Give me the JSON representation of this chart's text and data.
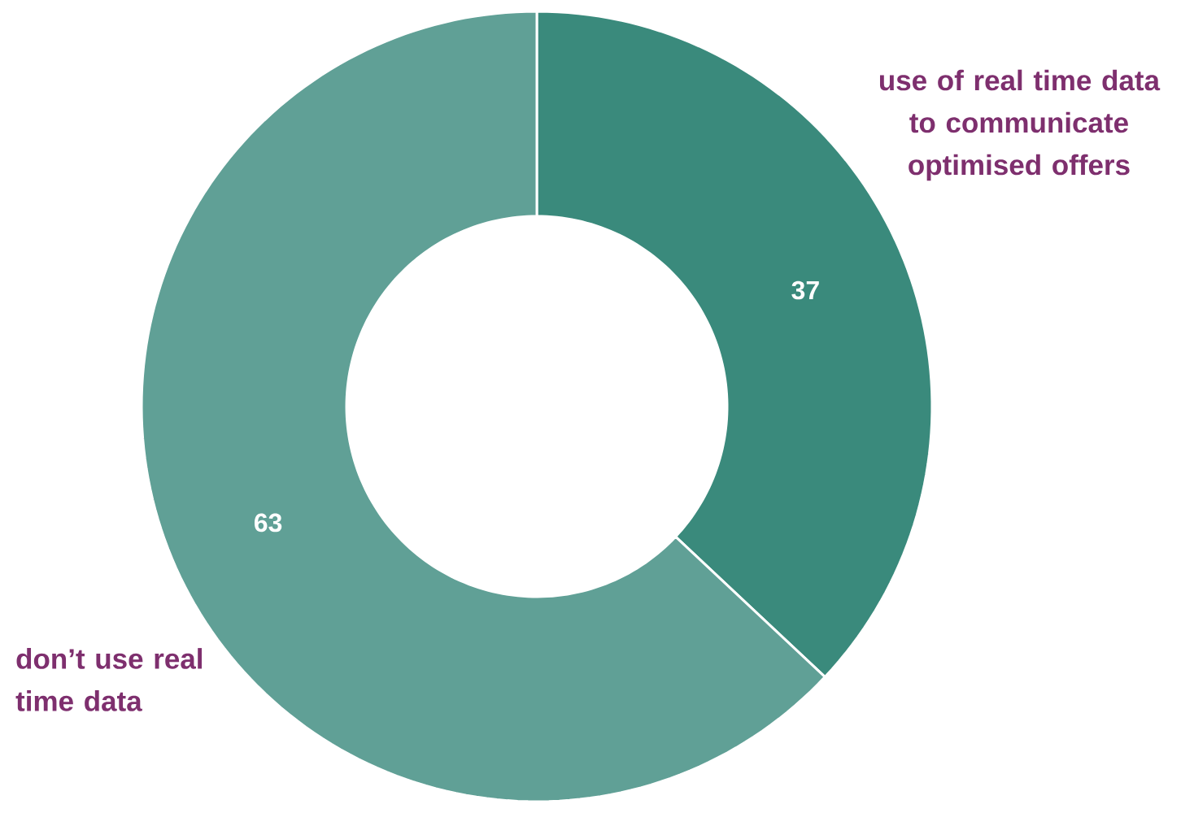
{
  "chart_data": {
    "type": "donut",
    "categories": [
      "use of real time data to communicate optimised offers",
      "don’t use real time data"
    ],
    "values": [
      37,
      63
    ],
    "colors": [
      "#3a8a7c",
      "#60a096"
    ],
    "data_labels": true
  }
}
